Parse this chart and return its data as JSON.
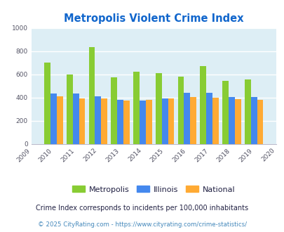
{
  "title": "Metropolis Violent Crime Index",
  "years": [
    2010,
    2011,
    2012,
    2013,
    2014,
    2015,
    2016,
    2017,
    2018,
    2019
  ],
  "metropolis": [
    700,
    600,
    835,
    575,
    620,
    610,
    580,
    670,
    545,
    555
  ],
  "illinois": [
    435,
    432,
    412,
    378,
    372,
    392,
    440,
    440,
    405,
    405
  ],
  "national": [
    410,
    392,
    393,
    372,
    380,
    393,
    402,
    400,
    383,
    380
  ],
  "color_metropolis": "#88cc33",
  "color_illinois": "#4488ee",
  "color_national": "#ffaa33",
  "xlim": [
    2009,
    2020
  ],
  "ylim": [
    0,
    1000
  ],
  "yticks": [
    0,
    200,
    400,
    600,
    800,
    1000
  ],
  "xticks": [
    2009,
    2010,
    2011,
    2012,
    2013,
    2014,
    2015,
    2016,
    2017,
    2018,
    2019,
    2020
  ],
  "bg_color": "#ddeef5",
  "plot_bg_color": "#ddeef5",
  "footnote1": "Crime Index corresponds to incidents per 100,000 inhabitants",
  "footnote2": "© 2025 CityRating.com - https://www.cityrating.com/crime-statistics/",
  "title_color": "#1166cc",
  "footnote1_color": "#222244",
  "footnote2_color": "#4488bb",
  "bar_width": 0.28,
  "legend_labels": [
    "Metropolis",
    "Illinois",
    "National"
  ]
}
